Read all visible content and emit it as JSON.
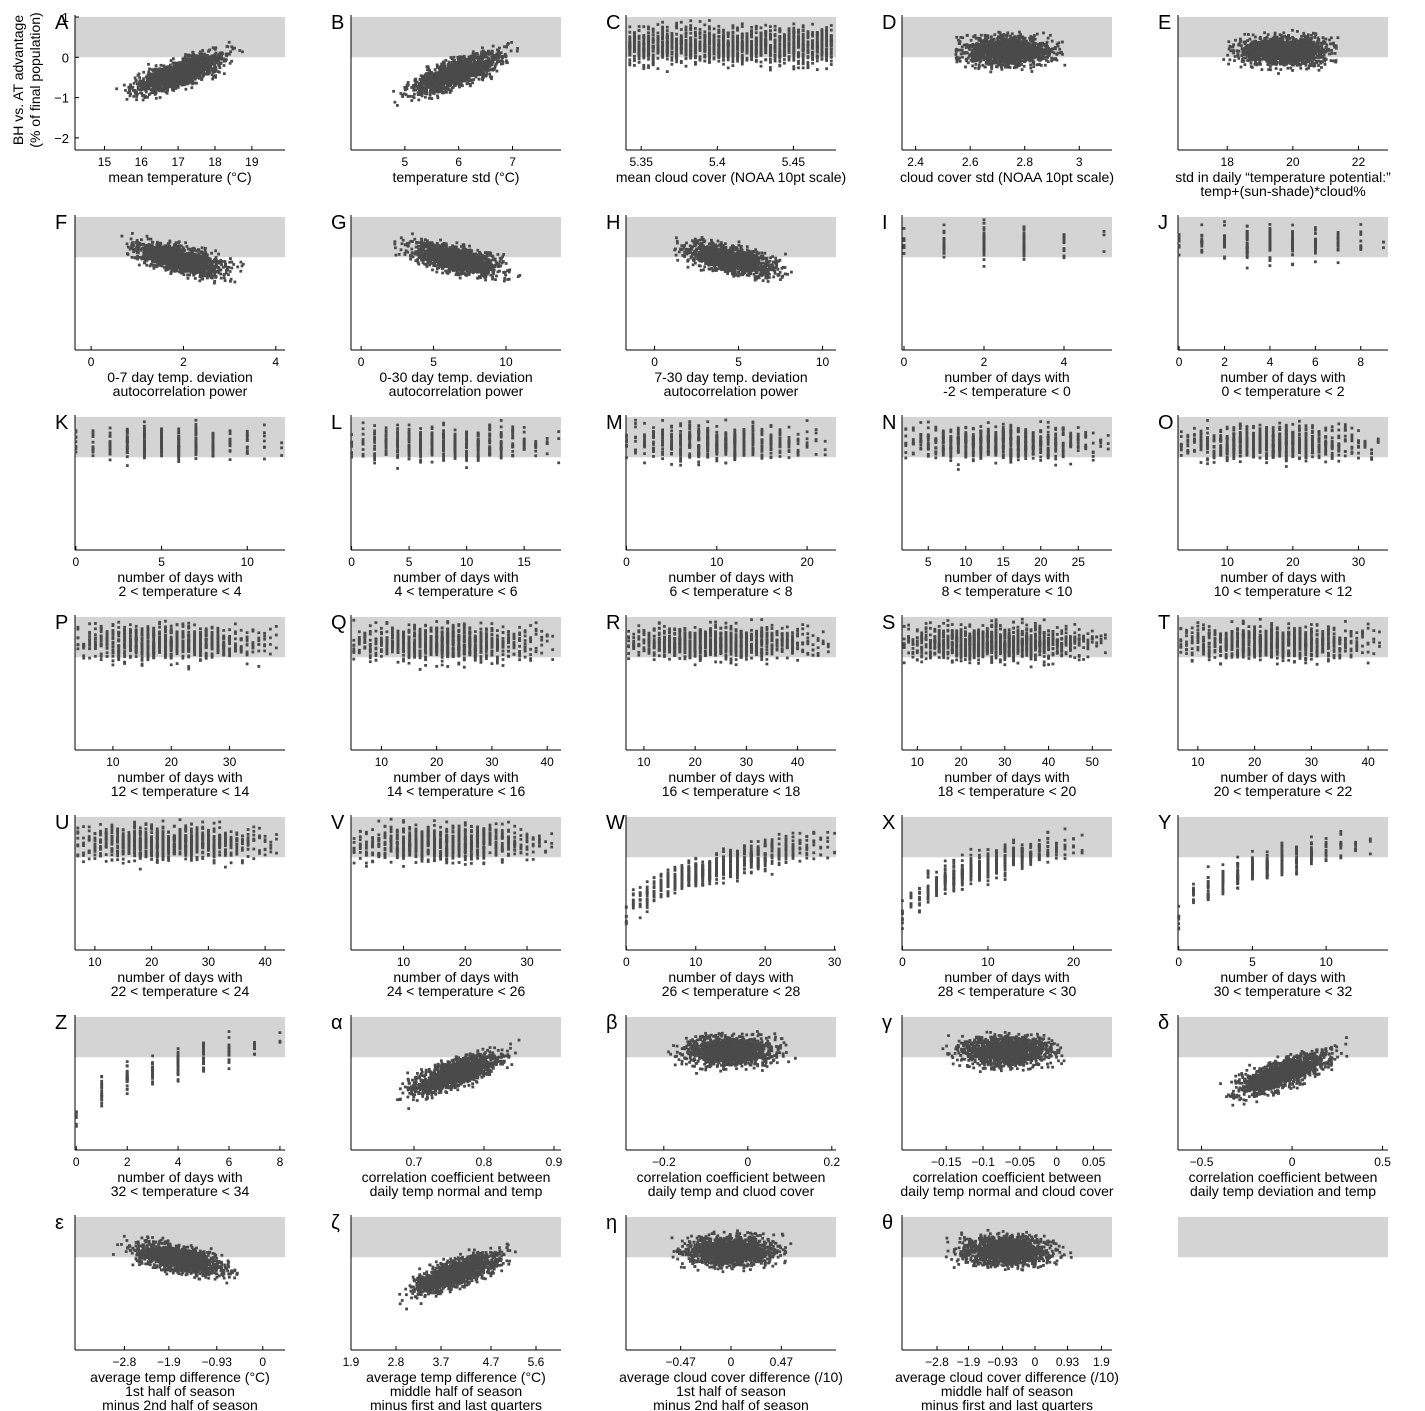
{
  "figure": {
    "ylabel_line1": "BH vs. AT advantage",
    "ylabel_line2": "(% of final population)",
    "colors": {
      "band": "#d4d4d4",
      "points": "#4a4a4a",
      "axis": "#000000"
    },
    "band_range": [
      0,
      1
    ],
    "y_ticks": [
      -2,
      -1,
      0,
      1
    ],
    "y_tick_labels": [
      "−2",
      "−1",
      "0",
      "1"
    ]
  },
  "chart_data": [
    {
      "letter": "A",
      "type": "scatter",
      "xlabel": [
        "mean temperature (°C)"
      ],
      "xticks": [
        15,
        16,
        17,
        18,
        19
      ],
      "xticklabels": [
        "15",
        "16",
        "17",
        "18",
        "19"
      ],
      "xlim": [
        14.2,
        19.9
      ],
      "ylim": [
        -2.3,
        1.05
      ],
      "pattern": "rise",
      "show_yticks": true
    },
    {
      "letter": "B",
      "type": "scatter",
      "xlabel": [
        "temperature std (°C)"
      ],
      "xticks": [
        5,
        6,
        7
      ],
      "xticklabels": [
        "5",
        "6",
        "7"
      ],
      "xlim": [
        4.0,
        7.9
      ],
      "ylim": [
        -2.3,
        1.05
      ],
      "pattern": "rise"
    },
    {
      "letter": "C",
      "type": "scatter",
      "xlabel": [
        "mean cloud cover (NOAA 10pt scale)"
      ],
      "xticks": [
        5.35,
        5.4,
        5.45
      ],
      "xticklabels": [
        "5.35",
        "5.4",
        "5.45"
      ],
      "xlim": [
        5.34,
        5.478
      ],
      "ylim": [
        -2.3,
        1.05
      ],
      "pattern": "columns",
      "ncols": 44
    },
    {
      "letter": "D",
      "type": "scatter",
      "xlabel": [
        "cloud cover std (NOAA 10pt scale)"
      ],
      "xticks": [
        2.4,
        2.6,
        2.8,
        3
      ],
      "xticklabels": [
        "2.4",
        "2.6",
        "2.8",
        "3"
      ],
      "xlim": [
        2.35,
        3.12
      ],
      "ylim": [
        -2.3,
        1.05
      ],
      "pattern": "blob"
    },
    {
      "letter": "E",
      "type": "scatter",
      "xlabel": [
        "std in daily “temperature potential:”",
        "temp+(sun-shade)*cloud%"
      ],
      "xticks": [
        18,
        20,
        22
      ],
      "xticklabels": [
        "18",
        "20",
        "22"
      ],
      "xlim": [
        16.5,
        22.9
      ],
      "ylim": [
        -2.3,
        1.05
      ],
      "pattern": "blob"
    },
    {
      "letter": "F",
      "type": "scatter",
      "xlabel": [
        "0-7 day temp. deviation",
        "autocorrelation power"
      ],
      "xticks": [
        0,
        2,
        4
      ],
      "xticklabels": [
        "0",
        "2",
        "4"
      ],
      "xlim": [
        -0.35,
        4.2
      ],
      "ylim": [
        -2.3,
        1.05
      ],
      "pattern": "fall"
    },
    {
      "letter": "G",
      "type": "scatter",
      "xlabel": [
        "0-30 day temp. deviation",
        "autocorrelation  power"
      ],
      "xticks": [
        0,
        5,
        10
      ],
      "xticklabels": [
        "0",
        "5",
        "10"
      ],
      "xlim": [
        -0.7,
        13.8
      ],
      "ylim": [
        -2.3,
        1.05
      ],
      "pattern": "fall"
    },
    {
      "letter": "H",
      "type": "scatter",
      "xlabel": [
        "7-30 day temp. deviation",
        "autocorrelation  power"
      ],
      "xticks": [
        0,
        5,
        10
      ],
      "xticklabels": [
        "0",
        "5",
        "10"
      ],
      "xlim": [
        -1.7,
        10.8
      ],
      "ylim": [
        -2.3,
        1.05
      ],
      "pattern": "fall"
    },
    {
      "letter": "I",
      "type": "scatter",
      "xlabel": [
        "number of days with",
        "-2 < temperature < 0"
      ],
      "xticks": [
        0,
        2,
        4
      ],
      "xticklabels": [
        "0",
        "2",
        "4"
      ],
      "xlim": [
        -0.05,
        5.2
      ],
      "ylim": [
        -2.3,
        1.05
      ],
      "pattern": "intcols",
      "nint": 6
    },
    {
      "letter": "J",
      "type": "scatter",
      "xlabel": [
        "number of days with",
        "0 < temperature < 2"
      ],
      "xticks": [
        0,
        2,
        4,
        6,
        8
      ],
      "xticklabels": [
        "0",
        "2",
        "4",
        "6",
        "8"
      ],
      "xlim": [
        -0.05,
        9.2
      ],
      "ylim": [
        -2.3,
        1.05
      ],
      "pattern": "intcols",
      "nint": 10
    },
    {
      "letter": "K",
      "type": "scatter",
      "xlabel": [
        "number of days with",
        "2 < temperature < 4"
      ],
      "xticks": [
        0,
        5,
        10
      ],
      "xticklabels": [
        "0",
        "5",
        "10"
      ],
      "xlim": [
        -0.05,
        12.2
      ],
      "ylim": [
        -2.3,
        1.05
      ],
      "pattern": "intcols",
      "nint": 13
    },
    {
      "letter": "L",
      "type": "scatter",
      "xlabel": [
        "number of days with",
        "4 < temperature < 6"
      ],
      "xticks": [
        0,
        5,
        10,
        15
      ],
      "xticklabels": [
        "0",
        "5",
        "10",
        "15"
      ],
      "xlim": [
        -0.05,
        18.2
      ],
      "ylim": [
        -2.3,
        1.05
      ],
      "pattern": "intcols",
      "nint": 19
    },
    {
      "letter": "M",
      "type": "scatter",
      "xlabel": [
        "number of days with",
        "6 < temperature < 8"
      ],
      "xticks": [
        0,
        10,
        20
      ],
      "xticklabels": [
        "0",
        "10",
        "20"
      ],
      "xlim": [
        -0.05,
        23.2
      ],
      "ylim": [
        -2.3,
        1.05
      ],
      "pattern": "intcols",
      "nint": 23
    },
    {
      "letter": "N",
      "type": "scatter",
      "xlabel": [
        "number of days with",
        "8 < temperature < 10"
      ],
      "xticks": [
        5,
        10,
        15,
        20,
        25
      ],
      "xticklabels": [
        "5",
        "10",
        "15",
        "20",
        "25"
      ],
      "xlim": [
        1.5,
        29.5
      ],
      "ylim": [
        -2.3,
        1.05
      ],
      "pattern": "intcols",
      "nint": 28,
      "xmin_int": 2
    },
    {
      "letter": "O",
      "type": "scatter",
      "xlabel": [
        "number of days with",
        "10 < temperature < 12"
      ],
      "xticks": [
        10,
        20,
        30
      ],
      "xticklabels": [
        "10",
        "20",
        "30"
      ],
      "xlim": [
        2.5,
        34.5
      ],
      "ylim": [
        -2.3,
        1.05
      ],
      "pattern": "intcols",
      "nint": 31,
      "xmin_int": 3
    },
    {
      "letter": "P",
      "type": "scatter",
      "xlabel": [
        "number of days with",
        "12 < temperature < 14"
      ],
      "xticks": [
        10,
        20,
        30
      ],
      "xticklabels": [
        "10",
        "20",
        "30"
      ],
      "xlim": [
        3.5,
        39.5
      ],
      "ylim": [
        -2.3,
        1.05
      ],
      "pattern": "intcols",
      "nint": 35,
      "xmin_int": 4
    },
    {
      "letter": "Q",
      "type": "scatter",
      "xlabel": [
        "number of days with",
        "14 < temperature < 16"
      ],
      "xticks": [
        10,
        20,
        30,
        40
      ],
      "xticklabels": [
        "10",
        "20",
        "30",
        "40"
      ],
      "xlim": [
        4.5,
        42.5
      ],
      "ylim": [
        -2.3,
        1.05
      ],
      "pattern": "intcols",
      "nint": 37,
      "xmin_int": 5
    },
    {
      "letter": "R",
      "type": "scatter",
      "xlabel": [
        "number of days with",
        "16 < temperature < 18"
      ],
      "xticks": [
        10,
        20,
        30,
        40
      ],
      "xticklabels": [
        "10",
        "20",
        "30",
        "40"
      ],
      "xlim": [
        6.5,
        47.5
      ],
      "ylim": [
        -2.3,
        1.05
      ],
      "pattern": "intcols",
      "nint": 40,
      "xmin_int": 7
    },
    {
      "letter": "S",
      "type": "scatter",
      "xlabel": [
        "number of days with",
        "18 < temperature < 20"
      ],
      "xticks": [
        10,
        20,
        30,
        40,
        50
      ],
      "xticklabels": [
        "10",
        "20",
        "30",
        "40",
        "50"
      ],
      "xlim": [
        6.5,
        54.5
      ],
      "ylim": [
        -2.3,
        1.05
      ],
      "pattern": "intcols",
      "nint": 47,
      "xmin_int": 7
    },
    {
      "letter": "T",
      "type": "scatter",
      "xlabel": [
        "number of days with",
        "20 < temperature < 22"
      ],
      "xticks": [
        10,
        20,
        30,
        40
      ],
      "xticklabels": [
        "10",
        "20",
        "30",
        "40"
      ],
      "xlim": [
        6.5,
        43.5
      ],
      "ylim": [
        -2.3,
        1.05
      ],
      "pattern": "intcols",
      "nint": 36,
      "xmin_int": 7
    },
    {
      "letter": "U",
      "type": "scatter",
      "xlabel": [
        "number of days with",
        "22 < temperature < 24"
      ],
      "xticks": [
        10,
        20,
        30,
        40
      ],
      "xticklabels": [
        "10",
        "20",
        "30",
        "40"
      ],
      "xlim": [
        6.5,
        43.5
      ],
      "ylim": [
        -2.3,
        1.05
      ],
      "pattern": "intcols",
      "nint": 36,
      "xmin_int": 7
    },
    {
      "letter": "V",
      "type": "scatter",
      "xlabel": [
        "number of days with",
        "24 < temperature < 26"
      ],
      "xticks": [
        10,
        20,
        30
      ],
      "xticklabels": [
        "10",
        "20",
        "30"
      ],
      "xlim": [
        1.5,
        35.5
      ],
      "ylim": [
        -2.3,
        1.05
      ],
      "pattern": "intcols",
      "nint": 33,
      "xmin_int": 2
    },
    {
      "letter": "W",
      "type": "scatter",
      "xlabel": [
        "number of days with",
        "26 < temperature < 28"
      ],
      "xticks": [
        0,
        10,
        20,
        30
      ],
      "xticklabels": [
        "0",
        "10",
        "20",
        "30"
      ],
      "xlim": [
        -0.05,
        30.2
      ],
      "ylim": [
        -2.3,
        1.05
      ],
      "pattern": "intcols_rise",
      "nint": 31
    },
    {
      "letter": "X",
      "type": "scatter",
      "xlabel": [
        "number of days with",
        "28 < temperature < 30"
      ],
      "xticks": [
        0,
        10,
        20
      ],
      "xticklabels": [
        "0",
        "10",
        "20"
      ],
      "xlim": [
        -0.05,
        24.5
      ],
      "ylim": [
        -2.3,
        1.05
      ],
      "pattern": "intcols_rise",
      "nint": 22
    },
    {
      "letter": "Y",
      "type": "scatter",
      "xlabel": [
        "number of days with",
        "30 < temperature < 32"
      ],
      "xticks": [
        0,
        5,
        10
      ],
      "xticklabels": [
        "0",
        "5",
        "10"
      ],
      "xlim": [
        -0.05,
        14.2
      ],
      "ylim": [
        -2.3,
        1.05
      ],
      "pattern": "intcols_rise",
      "nint": 14
    },
    {
      "letter": "Z",
      "type": "scatter",
      "xlabel": [
        "number of days with",
        "32 < temperature < 34"
      ],
      "xticks": [
        0,
        2,
        4,
        6,
        8
      ],
      "xticklabels": [
        "0",
        "2",
        "4",
        "6",
        "8"
      ],
      "xlim": [
        -0.05,
        8.2
      ],
      "ylim": [
        -2.3,
        1.05
      ],
      "pattern": "intcols_rise",
      "nint": 9
    },
    {
      "letter": "α",
      "type": "scatter",
      "xlabel": [
        "correlation coefficient between",
        "daily temp normal and temp"
      ],
      "xticks": [
        0.7,
        0.8,
        0.9
      ],
      "xticklabels": [
        "0.7",
        "0.8",
        "0.9"
      ],
      "xlim": [
        0.61,
        0.91
      ],
      "ylim": [
        -2.3,
        1.05
      ],
      "pattern": "rise"
    },
    {
      "letter": "β",
      "type": "scatter",
      "xlabel": [
        "correlation coefficient between",
        "daily temp and cluod cover"
      ],
      "xticks": [
        -0.2,
        0,
        0.2
      ],
      "xticklabels": [
        "−0.2",
        "0",
        "0.2"
      ],
      "xlim": [
        -0.29,
        0.21
      ],
      "ylim": [
        -2.3,
        1.05
      ],
      "pattern": "blob"
    },
    {
      "letter": "γ",
      "type": "scatter",
      "xlabel": [
        "correlation coefficient between",
        "daily temp normal and cloud cover"
      ],
      "xticks": [
        -0.15,
        -0.1,
        -0.05,
        0,
        0.05
      ],
      "xticklabels": [
        "−0.15",
        "−0.1",
        "−0.05",
        "0",
        "0.05"
      ],
      "xlim": [
        -0.21,
        0.075
      ],
      "ylim": [
        -2.3,
        1.05
      ],
      "pattern": "blob"
    },
    {
      "letter": "δ",
      "type": "scatter",
      "xlabel": [
        "correlation coefficient between",
        "daily temp deviation and temp"
      ],
      "xticks": [
        -0.5,
        0,
        0.5
      ],
      "xticklabels": [
        "−0.5",
        "0",
        "0.5"
      ],
      "xlim": [
        -0.63,
        0.53
      ],
      "ylim": [
        -2.3,
        1.05
      ],
      "pattern": "rise"
    },
    {
      "letter": "ε",
      "type": "scatter",
      "xlabel": [
        "average temp difference (°C)",
        "1st half of season",
        "minus 2nd half of season"
      ],
      "xticks": [
        -2.8,
        -1.9,
        -0.93,
        0
      ],
      "xticklabels": [
        "−2.8",
        "−1.9",
        "−0.93",
        "0"
      ],
      "xlim": [
        -3.8,
        0.45
      ],
      "ylim": [
        -2.3,
        1.05
      ],
      "pattern": "fall"
    },
    {
      "letter": "ζ",
      "type": "scatter",
      "xlabel": [
        "average temp difference (°C)",
        "middle half of season",
        "minus first and last quarters"
      ],
      "xticks": [
        1.9,
        2.8,
        3.7,
        4.7,
        5.6
      ],
      "xticklabels": [
        "1.9",
        "2.8",
        "3.7",
        "4.7",
        "5.6"
      ],
      "xlim": [
        1.9,
        6.1
      ],
      "ylim": [
        -2.3,
        1.05
      ],
      "pattern": "rise"
    },
    {
      "letter": "η",
      "type": "scatter",
      "xlabel": [
        "average cloud cover difference (/10)",
        "1st half of season",
        "minus 2nd half of season"
      ],
      "xticks": [
        -0.47,
        0,
        0.47
      ],
      "xticklabels": [
        "−0.47",
        "0",
        "0.47"
      ],
      "xlim": [
        -0.98,
        0.98
      ],
      "ylim": [
        -2.3,
        1.05
      ],
      "pattern": "blob"
    },
    {
      "letter": "θ",
      "type": "scatter",
      "xlabel": [
        "average cloud cover difference (/10)",
        "middle half of season",
        "minus first and last quarters"
      ],
      "xticks": [
        -2.8,
        -1.9,
        -0.93,
        0,
        0.93,
        1.9
      ],
      "xticklabels": [
        "−2.8",
        "−1.9",
        "−0.93",
        "0",
        "0.93",
        "1.9"
      ],
      "xlim": [
        -3.8,
        2.2
      ],
      "ylim": [
        -2.3,
        1.05
      ],
      "pattern": "blob"
    },
    {
      "letter": "",
      "type": "scatter",
      "xlabel": [],
      "xticks": [],
      "xticklabels": [],
      "xlim": [
        0,
        1
      ],
      "ylim": [
        -2.3,
        1.05
      ],
      "pattern": "empty"
    }
  ]
}
